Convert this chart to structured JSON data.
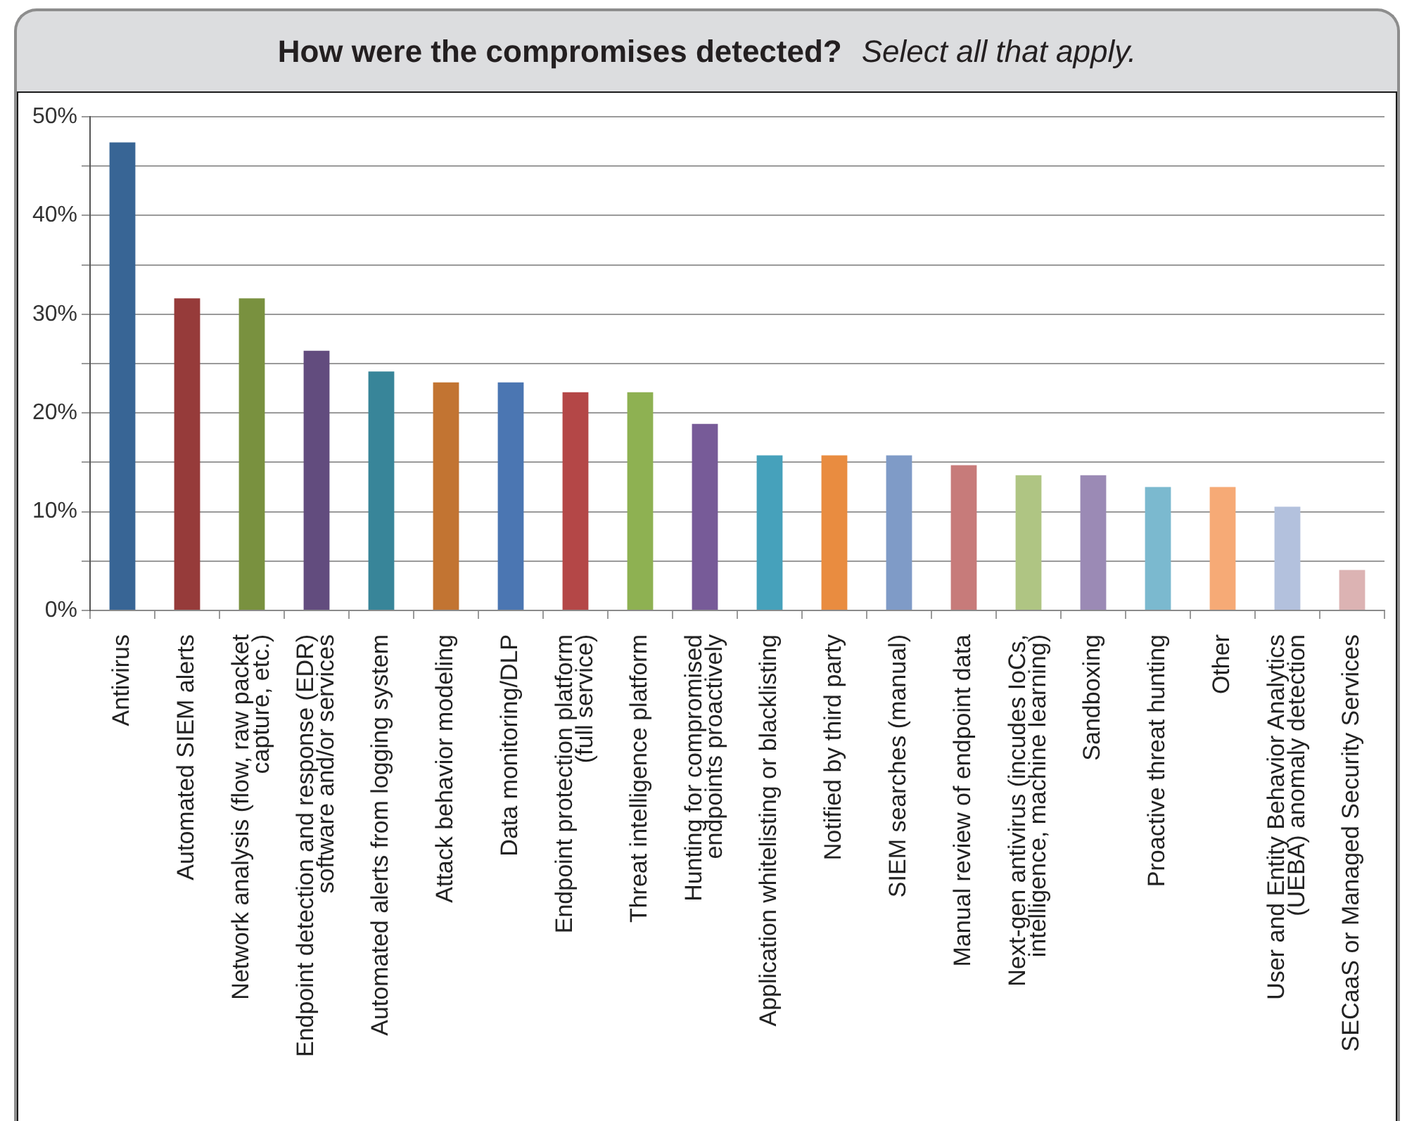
{
  "chart_data": {
    "type": "bar",
    "title": "How were the compromises detected?",
    "subtitle": "Select all that apply.",
    "categories": [
      "Antivirus",
      "Automated SIEM alerts",
      "Network analysis (flow, raw packet\ncapture, etc.)",
      "Endpoint detection and response (EDR)\nsoftware and/or services",
      "Automated alerts from logging system",
      "Attack behavior modeling",
      "Data monitoring/DLP",
      "Endpoint protection platform\n(full service)",
      "Threat intelligence platform",
      "Hunting for compromised\nendpoints proactively",
      "Application whitelisting or blacklisting",
      "Notified by third party",
      "SIEM searches (manual)",
      "Manual review of endpoint data",
      "Next-gen antivirus (incudes IoCs,\nintelligence, machine learning)",
      "Sandboxing",
      "Proactive threat hunting",
      "Other",
      "User and Entity Behavior Analytics\n(UEBA) anomaly detection",
      "SECaaS or Managed Security Services"
    ],
    "values": [
      47.4,
      31.6,
      31.6,
      26.3,
      24.2,
      23.1,
      23.1,
      22.1,
      22.1,
      18.9,
      15.7,
      15.7,
      15.7,
      14.7,
      13.7,
      13.7,
      12.5,
      12.5,
      10.5,
      4.1
    ],
    "colors": [
      "#386595",
      "#963b3a",
      "#79913f",
      "#624c7e",
      "#388599",
      "#c27432",
      "#4b76b2",
      "#b44747",
      "#8eb152",
      "#775b98",
      "#46a1bb",
      "#e98c40",
      "#7f9bc7",
      "#c77b7a",
      "#afc583",
      "#9b8ab5",
      "#7bb9cf",
      "#f6aa76",
      "#b3c1dd",
      "#dcb3b3"
    ],
    "ylim": [
      0,
      50
    ],
    "yticks": [
      {
        "value": 0,
        "label": "0%"
      },
      {
        "value": 5,
        "label": null
      },
      {
        "value": 10,
        "label": "10%"
      },
      {
        "value": 15,
        "label": null
      },
      {
        "value": 20,
        "label": "20%"
      },
      {
        "value": 25,
        "label": null
      },
      {
        "value": 30,
        "label": "30%"
      },
      {
        "value": 35,
        "label": null
      },
      {
        "value": 40,
        "label": "40%"
      },
      {
        "value": 45,
        "label": null
      },
      {
        "value": 50,
        "label": "50%"
      }
    ],
    "grid": "y"
  }
}
